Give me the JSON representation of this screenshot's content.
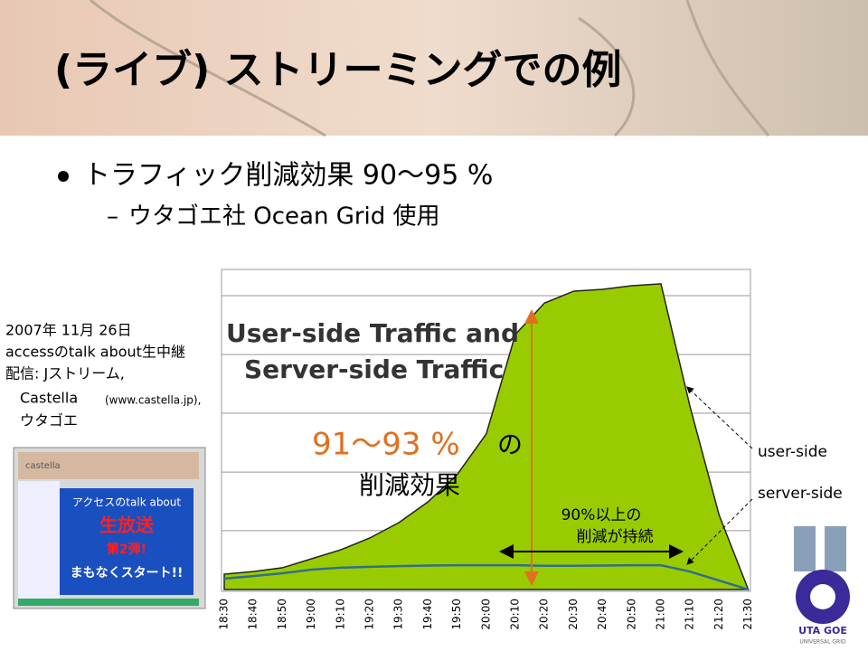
{
  "title": "(ライブ) ストリーミングでの例",
  "bullet": "トラフィック削減効果 90〜95 %",
  "sub_bullet": "ウタゴエ社 Ocean Grid 使用",
  "note": [
    "2007年 11月 26日",
    "accessのtalk about生中継",
    "配信: Jストリーム,",
    "Castella",
    "(www.castella.jp),",
    "ウタゴエ"
  ],
  "thumbnail": {
    "brand": "castella",
    "lines": [
      "アクセスのtalk about",
      "生放送",
      "第2弾!",
      "まもなくスタート!!"
    ]
  },
  "logo": {
    "name": "UTA GOE",
    "tagline": "UNIVERSAL GRID"
  },
  "chart_data": {
    "type": "area",
    "title": "User-side Traffic and",
    "subtitle": "Server-side Traffic",
    "categories": [
      "18:30",
      "18:40",
      "18:50",
      "19:00",
      "19:10",
      "19:20",
      "19:30",
      "19:40",
      "19:50",
      "20:00",
      "20:10",
      "20:20",
      "20:30",
      "20:40",
      "20:50",
      "21:00",
      "21:10",
      "21:20",
      "21:30"
    ],
    "series": [
      {
        "name": "user-side",
        "color": "#99cc00",
        "values": [
          4.8,
          5.6,
          6.8,
          9.6,
          12.4,
          16.1,
          20.9,
          27.4,
          35.9,
          48.6,
          79.7,
          89.5,
          93.2,
          93.8,
          94.9,
          95.5,
          57.1,
          23.2,
          0
        ]
      },
      {
        "name": "server-side",
        "color": "#2f6f8f",
        "values": [
          3.4,
          4.2,
          5.1,
          6.2,
          6.8,
          7.1,
          7.3,
          7.5,
          7.6,
          7.6,
          7.6,
          7.4,
          7.4,
          7.5,
          7.6,
          7.6,
          5.6,
          2.8,
          0
        ]
      }
    ],
    "ylim": [
      0,
      100
    ],
    "grid": [
      18.4,
      36.7,
      55.1,
      73.4,
      91.8
    ],
    "annotations": {
      "reduction": "91〜93 %",
      "particle": "の",
      "reduction_label": "削減効果",
      "sustained_1": "90%以上の",
      "sustained_2": "削減が持続"
    }
  }
}
